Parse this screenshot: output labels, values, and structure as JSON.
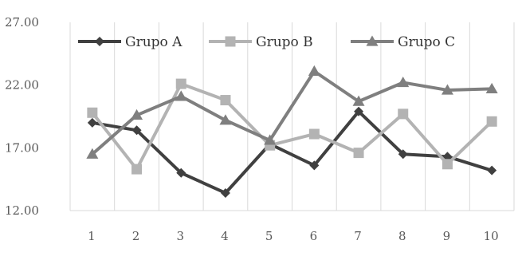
{
  "chart_data": {
    "type": "line",
    "x": [
      "1",
      "2",
      "3",
      "4",
      "5",
      "6",
      "7",
      "8",
      "9",
      "10"
    ],
    "ylim": [
      12,
      27
    ],
    "yticks": [
      "12.00",
      "17.00",
      "22.00",
      "27.00"
    ],
    "ytick_values": [
      12,
      17,
      22,
      27
    ],
    "grid": "vertical",
    "legend_position": "top",
    "series": [
      {
        "name": "Grupo A",
        "color": "#404040",
        "marker": "diamond",
        "values": [
          19.0,
          18.4,
          15.0,
          13.4,
          17.3,
          15.6,
          19.9,
          16.5,
          16.3,
          15.2
        ]
      },
      {
        "name": "Grupo B",
        "color": "#b3b3b3",
        "marker": "square",
        "values": [
          19.8,
          15.3,
          22.1,
          20.8,
          17.2,
          18.1,
          16.6,
          19.7,
          15.7,
          19.1
        ]
      },
      {
        "name": "Grupo C",
        "color": "#7f7f7f",
        "marker": "triangle",
        "values": [
          16.5,
          19.6,
          21.1,
          19.2,
          17.6,
          23.1,
          20.7,
          22.2,
          21.6,
          21.7
        ]
      }
    ]
  }
}
